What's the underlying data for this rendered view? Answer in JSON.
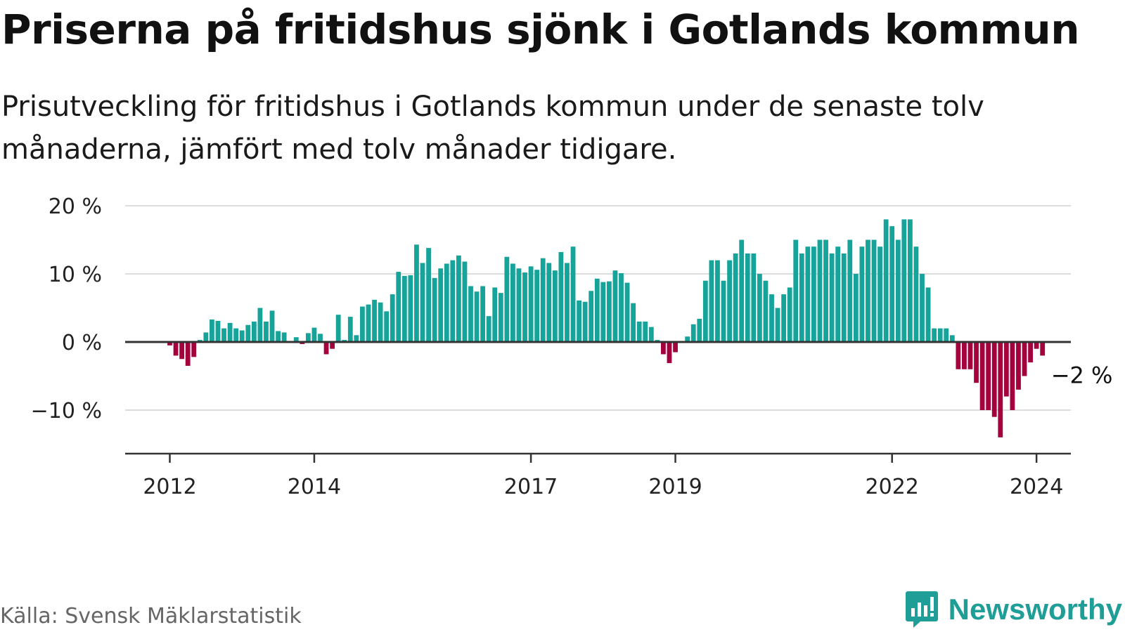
{
  "header": {
    "title": "Priserna på fritidshus sjönk i Gotlands kommun",
    "subtitle": "Prisutveckling för fritidshus i Gotlands kommun under de senaste tolv månaderna, jämfört med tolv månader tidigare."
  },
  "footer": {
    "source": "Källa: Svensk Mäklarstatistik",
    "logo_text": "Newsworthy"
  },
  "colors": {
    "positive": "#16a39a",
    "negative": "#a3003d",
    "brand": "#1e9e96"
  },
  "chart_data": {
    "type": "bar",
    "title": "Priserna på fritidshus sjönk i Gotlands kommun",
    "xlabel": "",
    "ylabel": "",
    "ylim": [
      -16,
      20
    ],
    "y_ticks": [
      {
        "value": 20,
        "label": "20 %"
      },
      {
        "value": 10,
        "label": "10 %"
      },
      {
        "value": 0,
        "label": "0 %"
      },
      {
        "value": -10,
        "label": "−10 %"
      }
    ],
    "x_ticks": [
      {
        "date": "2012-01",
        "label": "2012"
      },
      {
        "date": "2014-01",
        "label": "2014"
      },
      {
        "date": "2017-01",
        "label": "2017"
      },
      {
        "date": "2019-01",
        "label": "2019"
      },
      {
        "date": "2022-01",
        "label": "2022"
      },
      {
        "date": "2024-01",
        "label": "2024"
      }
    ],
    "grid": true,
    "annotation": {
      "date": "2024-02",
      "value": -2,
      "label": "−2 %"
    },
    "series": [
      {
        "start": "2011-07",
        "frequency": "monthly",
        "values": [
          0,
          0,
          0,
          0,
          0,
          0,
          -0.5,
          -2,
          -2.5,
          -3.5,
          -2.2,
          0.3,
          1.4,
          3.3,
          3.1,
          2,
          2.8,
          2,
          1.7,
          2.5,
          3,
          5,
          3,
          4.6,
          1.6,
          1.4,
          0,
          0.7,
          -0.3,
          1.3,
          2.1,
          1.2,
          -1.8,
          -1,
          4,
          0.3,
          3.7,
          1,
          5.2,
          5.5,
          6.2,
          5.8,
          4.5,
          7,
          10.3,
          9.7,
          9.8,
          14.3,
          11.6,
          13.8,
          9.4,
          10.8,
          11.5,
          12,
          12.7,
          11.8,
          8.2,
          7.4,
          8.2,
          3.8,
          8,
          7.2,
          12.5,
          11.5,
          10.8,
          10.2,
          11.1,
          10.6,
          12.3,
          11.6,
          10.5,
          13.2,
          11.6,
          14,
          6.1,
          5.9,
          7.5,
          9.3,
          8.8,
          8.9,
          10.5,
          10.1,
          8.7,
          5.7,
          3,
          3,
          2.2,
          0.3,
          -1.8,
          -3.1,
          -1.5,
          0,
          0.8,
          2.6,
          3.4,
          9,
          12,
          12,
          9,
          12,
          13,
          15,
          13,
          13,
          10,
          9,
          7,
          5,
          7,
          8,
          15,
          13,
          14,
          14,
          15,
          15,
          13,
          14,
          13,
          15,
          10,
          14,
          15,
          15,
          14,
          18,
          17,
          15,
          18,
          18,
          14,
          10,
          8,
          2,
          2,
          2,
          1,
          -4,
          -4,
          -4,
          -6,
          -10,
          -10,
          -11,
          -14,
          -8,
          -10,
          -7,
          -5,
          -3,
          -1,
          -2
        ]
      }
    ]
  }
}
